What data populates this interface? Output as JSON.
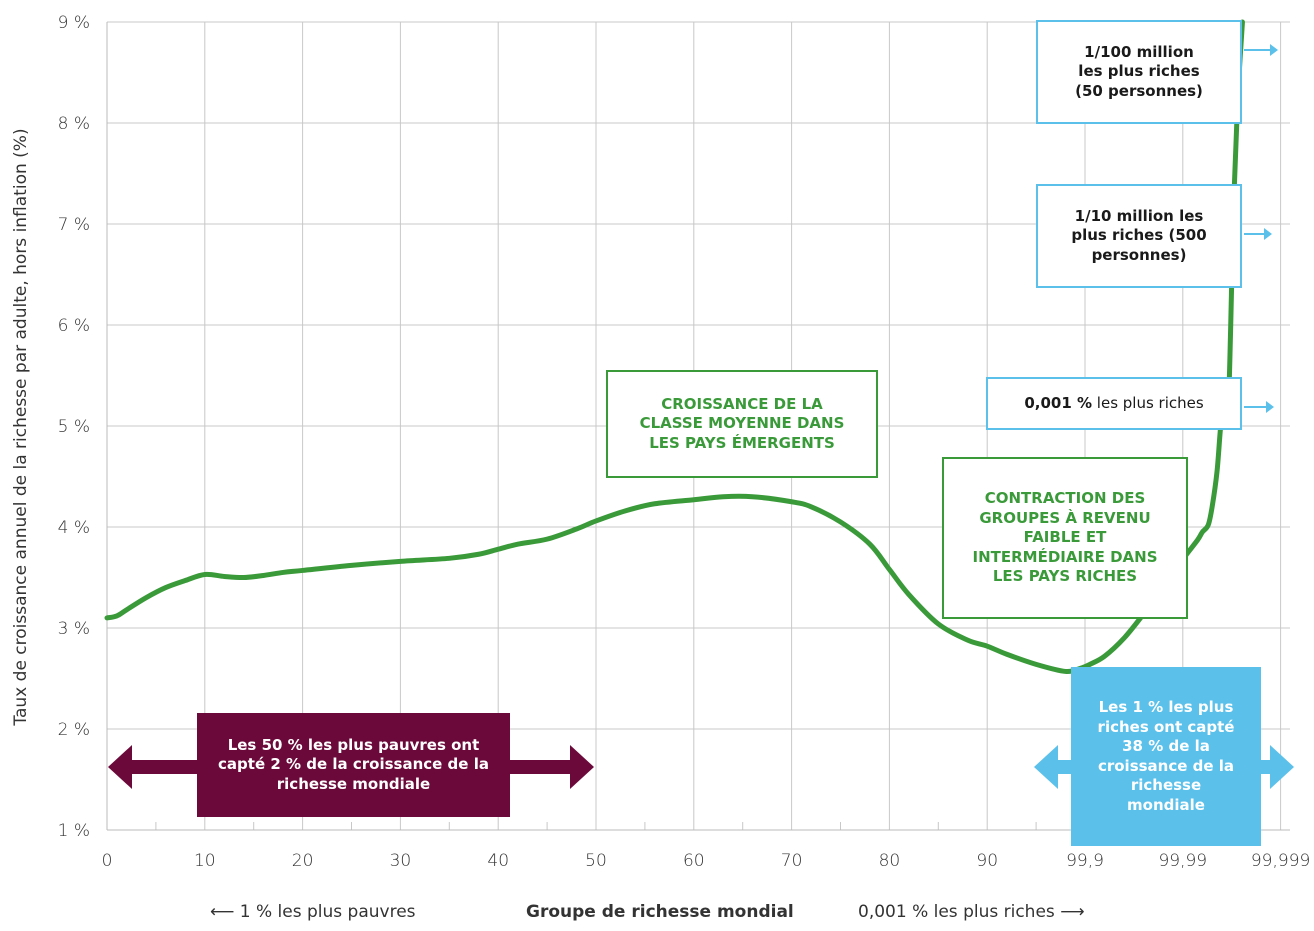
{
  "chart_data": {
    "type": "line",
    "title": "",
    "ylabel": "Taux de croissance annuel de la richesse par adulte, hors inflation (%)",
    "xlabel": "Groupe de richesse mondial",
    "x_left_label": "1 % les plus pauvres",
    "x_right_label": "0,001 % les plus riches",
    "ylim": [
      1,
      9
    ],
    "y_ticks": [
      1,
      2,
      3,
      4,
      5,
      6,
      7,
      8,
      9
    ],
    "y_tick_labels": [
      "1 %",
      "2 %",
      "3 %",
      "4 %",
      "5 %",
      "6 %",
      "7 %",
      "8 %",
      "9 %"
    ],
    "x_tick_labels": [
      "0",
      "10",
      "20",
      "30",
      "40",
      "50",
      "60",
      "70",
      "80",
      "90",
      "99,9",
      "99,99",
      "99,999"
    ],
    "grid": true,
    "line_color": "#3a9a3a",
    "series": [
      {
        "x": [
          0,
          1,
          2,
          4,
          6,
          8,
          10,
          12,
          14,
          16,
          18,
          20,
          25,
          30,
          35,
          38,
          40,
          42,
          45,
          48,
          50,
          53,
          56,
          60,
          63,
          66,
          70,
          72,
          75,
          78,
          80,
          82,
          85,
          88,
          90,
          92,
          95,
          98,
          99.5,
          100.5,
          102,
          104,
          106,
          108,
          110,
          111.5,
          112,
          112.6,
          113,
          113.5,
          113.9,
          114.2,
          114.5,
          114.7,
          114.9,
          115.2,
          115.6,
          116.1
        ],
        "values": [
          3.1,
          3.12,
          3.18,
          3.3,
          3.4,
          3.47,
          3.53,
          3.51,
          3.5,
          3.52,
          3.55,
          3.57,
          3.62,
          3.66,
          3.69,
          3.73,
          3.78,
          3.83,
          3.88,
          3.98,
          4.06,
          4.16,
          4.23,
          4.27,
          4.3,
          4.3,
          4.25,
          4.2,
          4.05,
          3.83,
          3.58,
          3.33,
          3.04,
          2.88,
          2.82,
          2.74,
          2.64,
          2.57,
          2.6,
          2.64,
          2.72,
          2.9,
          3.14,
          3.4,
          3.68,
          3.87,
          3.95,
          4.02,
          4.2,
          4.55,
          5.02,
          5.09,
          5.14,
          5.3,
          6.0,
          7.2,
          8.2,
          9.0
        ]
      }
    ]
  },
  "annotations": {
    "middle_class": "CROISSANCE DE LA CLASSE MOYENNE DANS LES PAYS ÉMERGENTS",
    "contraction": "CONTRACTION DES GROUPES À REVENU FAIBLE ET INTERMÉDIAIRE DANS LES PAYS RICHES",
    "top_100m": "1/100 million les plus riches (50 personnes)",
    "top_10m": "1/10 million les plus riches (500 personnes)",
    "top_0001_bold": "0,001 %",
    "top_0001_rest": "les plus riches",
    "poorest_50": "Les 50 % les plus pauvres ont capté 2 % de la croissance de la richesse mondiale",
    "richest_1": "Les 1 % les plus riches ont capté 38 % de la croissance de la richesse mondiale"
  },
  "colors": {
    "green": "#3a9a3a",
    "blue": "#5bc0ea",
    "maroon": "#6b0a3a",
    "grid": "#c8c8c8"
  }
}
